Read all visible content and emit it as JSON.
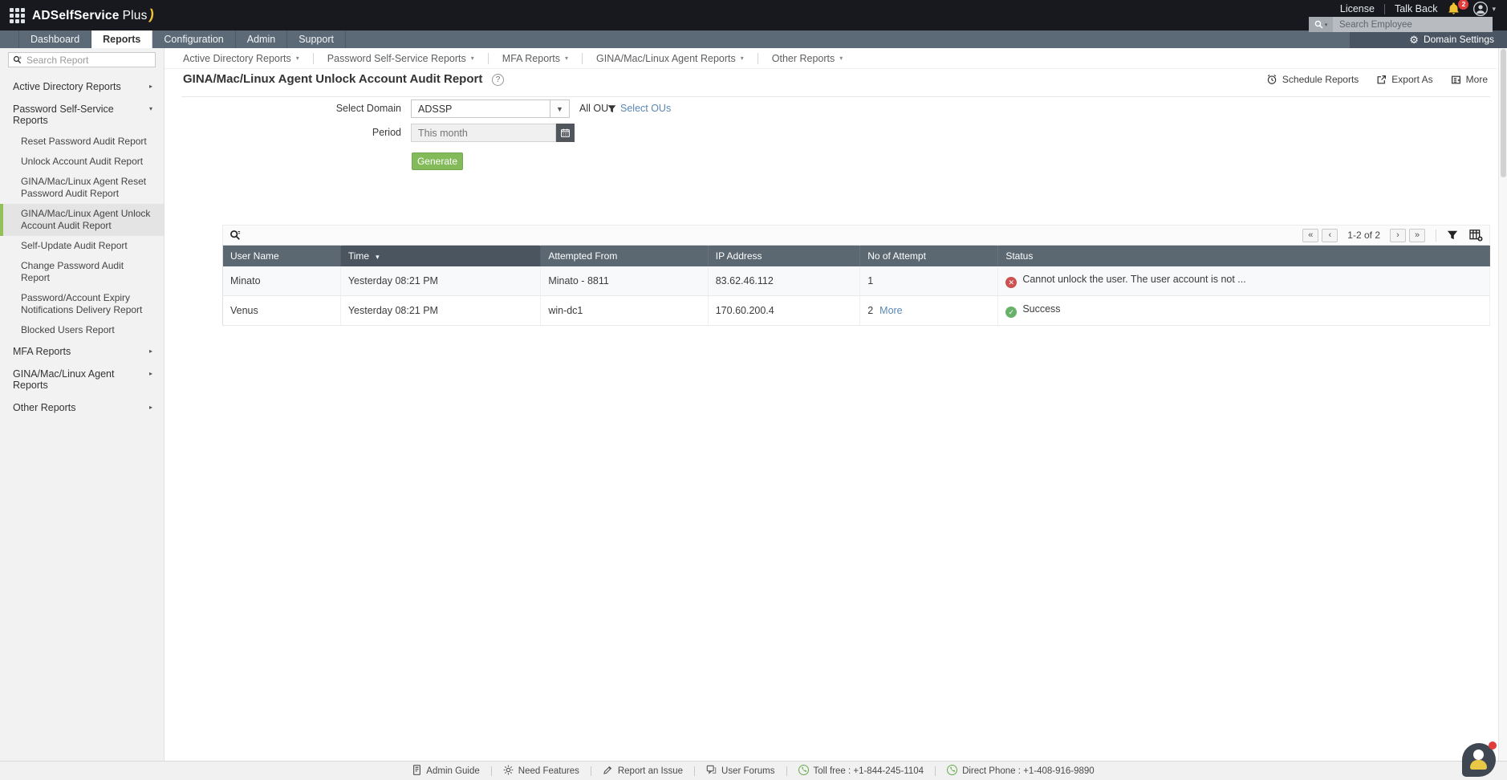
{
  "topbar": {
    "logo_main": "ADSelfService",
    "logo_suffix": "Plus",
    "license_label": "License",
    "talkback_label": "Talk Back",
    "notification_count": "2",
    "search_placeholder": "Search Employee"
  },
  "navbar": {
    "tabs": [
      {
        "label": "Dashboard",
        "active": false
      },
      {
        "label": "Reports",
        "active": true
      },
      {
        "label": "Configuration",
        "active": false
      },
      {
        "label": "Admin",
        "active": false
      },
      {
        "label": "Support",
        "active": false
      }
    ],
    "domain_settings_label": "Domain Settings"
  },
  "subnav": {
    "items": [
      "Active Directory Reports",
      "Password Self-Service Reports",
      "MFA Reports",
      "GINA/Mac/Linux Agent Reports",
      "Other Reports"
    ]
  },
  "sidebar": {
    "search_placeholder": "Search Report",
    "items": [
      {
        "label": "Active Directory Reports",
        "expanded": false
      },
      {
        "label": "Password Self-Service Reports",
        "expanded": true,
        "children": [
          {
            "label": "Reset Password Audit Report"
          },
          {
            "label": "Unlock Account Audit Report"
          },
          {
            "label": "GINA/Mac/Linux Agent Reset Password Audit Report"
          },
          {
            "label": "GINA/Mac/Linux Agent Unlock Account Audit Report",
            "selected": true
          },
          {
            "label": "Self-Update Audit Report"
          },
          {
            "label": "Change Password Audit Report"
          },
          {
            "label": "Password/Account Expiry Notifications Delivery Report"
          },
          {
            "label": "Blocked Users Report"
          }
        ]
      },
      {
        "label": "MFA Reports",
        "expanded": false
      },
      {
        "label": "GINA/Mac/Linux Agent Reports",
        "expanded": false
      },
      {
        "label": "Other Reports",
        "expanded": false
      }
    ]
  },
  "report": {
    "title": "GINA/Mac/Linux Agent Unlock Account Audit Report",
    "actions": {
      "schedule_label": "Schedule Reports",
      "export_label": "Export As",
      "more_label": "More"
    },
    "form": {
      "domain_label": "Select Domain",
      "domain_value": "ADSSP",
      "ou_label": "All OU",
      "ou_link_label": "Select OUs",
      "period_label": "Period",
      "period_value": "This month",
      "generate_label": "Generate"
    },
    "pagination": {
      "range": "1-2 of 2"
    },
    "table": {
      "columns": [
        "User Name",
        "Time",
        "Attempted From",
        "IP Address",
        "No of Attempt",
        "Status"
      ],
      "column_widths": [
        "9.3%",
        "15.8%",
        "13.2%",
        "12.0%",
        "10.9%",
        "38.8%"
      ],
      "sorted_column": "Time",
      "rows": [
        {
          "user": "Minato",
          "time": "Yesterday 08:21 PM",
          "attempted_from": "Minato - 8811",
          "ip": "83.62.46.112",
          "attempts": "1",
          "more": false,
          "status": "Cannot unlock the user. The user account is not ...",
          "status_type": "error"
        },
        {
          "user": "Venus",
          "time": "Yesterday 08:21 PM",
          "attempted_from": "win-dc1",
          "ip": "170.60.200.4",
          "attempts": "2",
          "more": true,
          "more_label": "More",
          "status": "Success",
          "status_type": "success"
        }
      ]
    }
  },
  "footer": {
    "items": [
      {
        "label": "Admin Guide",
        "icon": "guide-icon",
        "link": true
      },
      {
        "label": "Need Features",
        "icon": "features-icon",
        "link": true
      },
      {
        "label": "Report an Issue",
        "icon": "issue-icon",
        "link": true
      },
      {
        "label": "User Forums",
        "icon": "forums-icon",
        "link": true
      },
      {
        "label": "Toll free : +1-844-245-1104",
        "icon": "phone-icon",
        "link": false
      },
      {
        "label": "Direct Phone : +1-408-916-9890",
        "icon": "phone-icon",
        "link": false
      }
    ]
  },
  "icons": {
    "caret_down": "▾",
    "chevron_right": "▸",
    "chevron_down": "▾",
    "gear": "⚙",
    "help": "?",
    "first": "«",
    "previous": "‹",
    "next": "›",
    "last": "»",
    "error_glyph": "✕",
    "success_glyph": "✓"
  },
  "colors": {
    "topbar": "#17191e",
    "navbar": "#5c6a77",
    "accent": "#84bb5a",
    "thead": "#5b6771",
    "select-green": "#94c059",
    "link-blue": "#5b87b4",
    "error-red": "#cd5151",
    "success-green": "#67b168",
    "bell-yellow": "#f0c330",
    "badge-red": "#e23c3c"
  }
}
